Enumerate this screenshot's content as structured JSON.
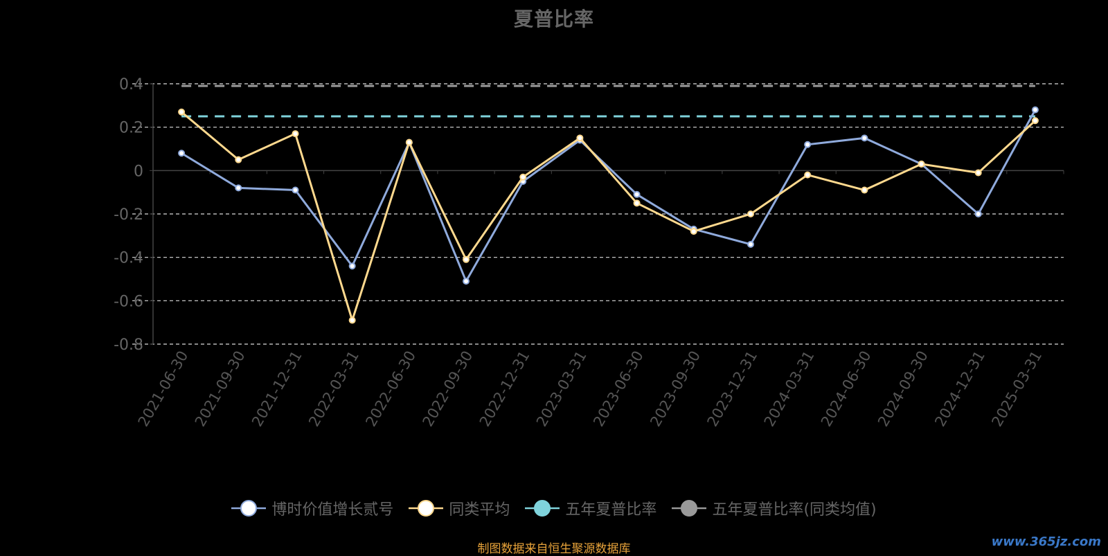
{
  "chart_data": {
    "type": "line",
    "title": "夏普比率",
    "x": [
      "2021-06-30",
      "2021-09-30",
      "2021-12-31",
      "2022-03-31",
      "2022-06-30",
      "2022-09-30",
      "2022-12-31",
      "2023-03-31",
      "2023-06-30",
      "2023-09-30",
      "2023-12-31",
      "2024-03-31",
      "2024-06-30",
      "2024-09-30",
      "2024-12-31",
      "2025-03-31"
    ],
    "y_ticks": [
      "0.4",
      "0.2",
      "0",
      "-0.2",
      "-0.4",
      "-0.6",
      "-0.8"
    ],
    "ylim": [
      -0.8,
      0.4
    ],
    "grid": "dashed horizontal",
    "legend_position": "bottom",
    "series": [
      {
        "name": "博时价值增长贰号",
        "color": "#8faadc",
        "values": [
          0.08,
          -0.08,
          -0.09,
          -0.44,
          0.13,
          -0.51,
          -0.05,
          0.14,
          -0.11,
          -0.27,
          -0.34,
          0.12,
          0.15,
          0.03,
          -0.2,
          0.28
        ]
      },
      {
        "name": "同类平均",
        "color": "#ffd98e",
        "values": [
          0.27,
          0.05,
          0.17,
          -0.69,
          0.13,
          -0.41,
          -0.03,
          0.15,
          -0.15,
          -0.28,
          -0.2,
          -0.02,
          -0.09,
          0.03,
          -0.01,
          0.23
        ]
      },
      {
        "name": "五年夏普比率",
        "color": "#7fd3dc",
        "values": [
          0.25,
          0.25,
          0.25,
          0.25,
          0.25,
          0.25,
          0.25,
          0.25,
          0.25,
          0.25,
          0.25,
          0.25,
          0.25,
          0.25,
          0.25,
          0.25
        ]
      },
      {
        "name": "五年夏普比率(同类均值)",
        "color": "#999999",
        "values": [
          0.39,
          0.39,
          0.39,
          0.39,
          0.39,
          0.39,
          0.39,
          0.39,
          0.39,
          0.39,
          0.39,
          0.39,
          0.39,
          0.39,
          0.39,
          0.39
        ]
      }
    ]
  },
  "footer": {
    "source": "制图数据来自恒生聚源数据库",
    "watermark": "www.365jz.com"
  }
}
